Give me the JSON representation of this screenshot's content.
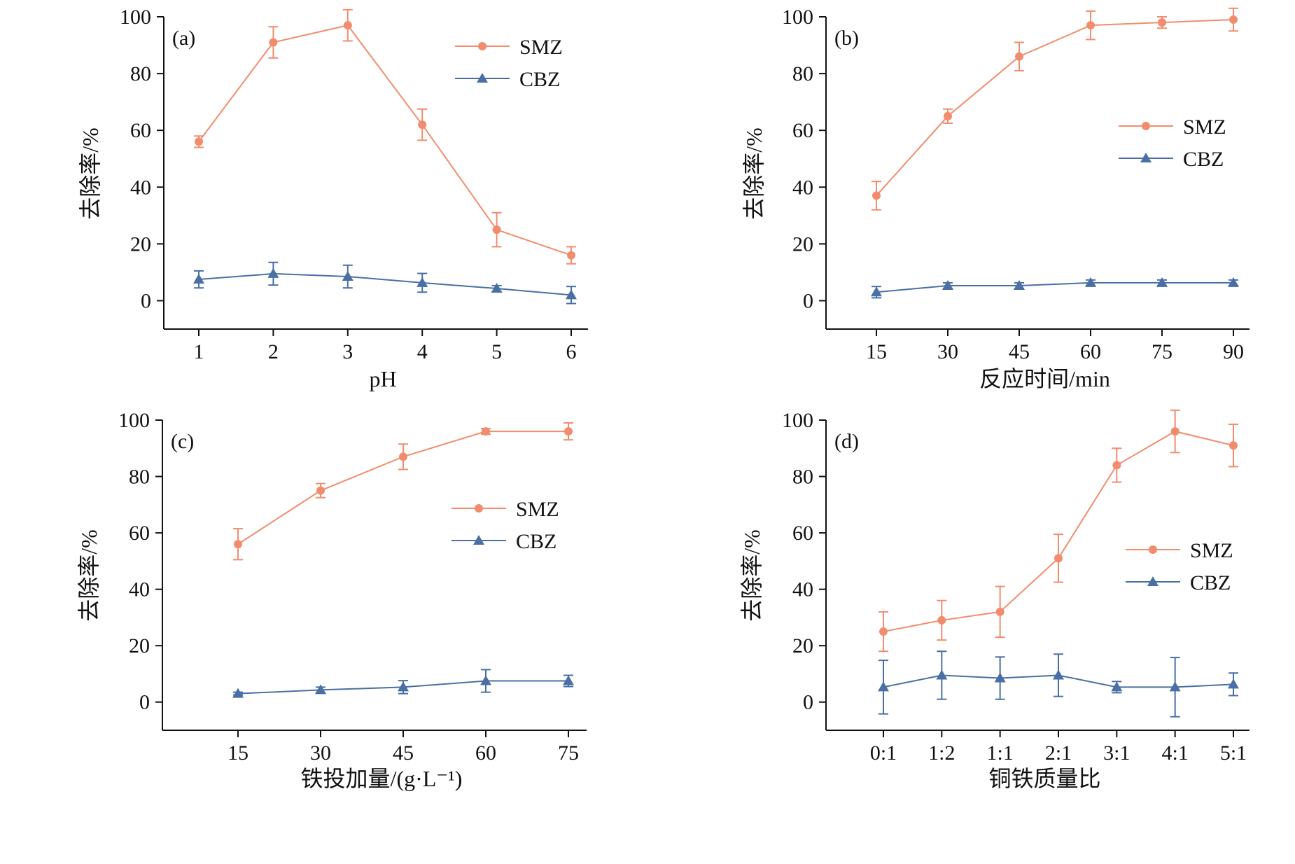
{
  "colors": {
    "smz": "#f28c6e",
    "cbz": "#4a6fa5",
    "axis": "#111111"
  },
  "chart_data": [
    {
      "type": "line",
      "panel_label": "(a)",
      "xlabel": "pH",
      "ylabel": "去除率/%",
      "categories": [
        "1",
        "2",
        "3",
        "4",
        "5",
        "6"
      ],
      "ylim": [
        -10,
        100
      ],
      "yticks": [
        0,
        20,
        40,
        60,
        80,
        100
      ],
      "legend": "top-right",
      "grid": false,
      "series": [
        {
          "name": "SMZ",
          "marker": "circle",
          "values": [
            56,
            91,
            97,
            62,
            25,
            16
          ],
          "errors": [
            2,
            5.5,
            5.5,
            5.5,
            6,
            3
          ]
        },
        {
          "name": "CBZ",
          "marker": "triangle",
          "values": [
            7.5,
            9.5,
            8.5,
            6.3,
            4.3,
            2
          ],
          "errors": [
            3,
            4,
            4,
            3.3,
            1,
            3
          ]
        }
      ]
    },
    {
      "type": "line",
      "panel_label": "(b)",
      "xlabel": "反应时间/min",
      "ylabel": "去除率/%",
      "categories": [
        "15",
        "30",
        "45",
        "60",
        "75",
        "90"
      ],
      "ylim": [
        -10,
        100
      ],
      "yticks": [
        0,
        20,
        40,
        60,
        80,
        100
      ],
      "legend": "center-right",
      "grid": false,
      "series": [
        {
          "name": "SMZ",
          "marker": "circle",
          "values": [
            37,
            65,
            86,
            97,
            98,
            99
          ],
          "errors": [
            5,
            2.5,
            5,
            5,
            2,
            4
          ]
        },
        {
          "name": "CBZ",
          "marker": "triangle",
          "values": [
            3,
            5.3,
            5.3,
            6.3,
            6.3,
            6.3
          ],
          "errors": [
            2,
            1,
            1,
            1,
            1,
            1
          ]
        }
      ]
    },
    {
      "type": "line",
      "panel_label": "(c)",
      "xlabel": "铁投加量/(g·L⁻¹)",
      "ylabel": "去除率/%",
      "categories": [
        "15",
        "30",
        "45",
        "60",
        "75"
      ],
      "ylim": [
        -10,
        100
      ],
      "yticks": [
        0,
        20,
        40,
        60,
        80,
        100
      ],
      "legend": "top-right",
      "grid": false,
      "series": [
        {
          "name": "SMZ",
          "marker": "circle",
          "values": [
            56,
            75,
            87,
            96,
            96
          ],
          "errors": [
            5.5,
            2.5,
            4.5,
            1,
            3
          ]
        },
        {
          "name": "CBZ",
          "marker": "triangle",
          "values": [
            3,
            4.3,
            5.3,
            7.5,
            7.5
          ],
          "errors": [
            0.5,
            1,
            2.3,
            4,
            2
          ]
        }
      ]
    },
    {
      "type": "line",
      "panel_label": "(d)",
      "xlabel": "铜铁质量比",
      "ylabel": "去除率/%",
      "categories": [
        "0:1",
        "1:2",
        "1:1",
        "2:1",
        "3:1",
        "4:1",
        "5:1"
      ],
      "ylim": [
        -10,
        100
      ],
      "yticks": [
        0,
        20,
        40,
        60,
        80,
        100
      ],
      "legend": "center-right",
      "grid": false,
      "series": [
        {
          "name": "SMZ",
          "marker": "circle",
          "values": [
            25,
            29,
            32,
            51,
            84,
            96,
            91
          ],
          "errors": [
            7,
            7,
            9,
            8.5,
            6,
            7.5,
            7.5
          ]
        },
        {
          "name": "CBZ",
          "marker": "triangle",
          "values": [
            5.3,
            9.5,
            8.5,
            9.5,
            5.3,
            5.3,
            6.3
          ],
          "errors": [
            9.5,
            8.5,
            7.5,
            7.5,
            2,
            10.5,
            4
          ]
        }
      ]
    }
  ]
}
